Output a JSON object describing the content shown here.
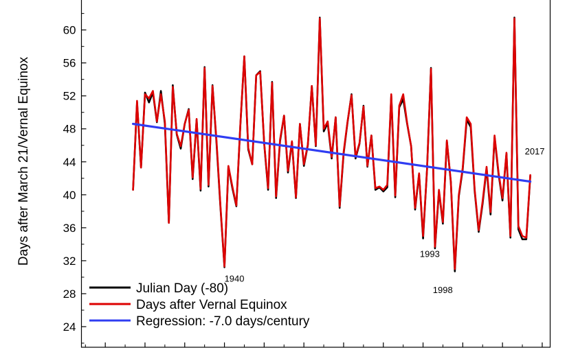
{
  "chart_data": {
    "type": "line",
    "title": "",
    "xlabel": "",
    "ylabel": "Days after March 21/Vernal Equinox",
    "ylim": [
      21.5,
      63.8
    ],
    "xlim": [
      1904,
      2022
    ],
    "yticks": [
      24,
      28,
      32,
      36,
      40,
      44,
      48,
      52,
      56,
      60
    ],
    "x": [
      1917,
      1918,
      1919,
      1920,
      1921,
      1922,
      1923,
      1924,
      1925,
      1926,
      1927,
      1928,
      1929,
      1930,
      1931,
      1932,
      1933,
      1934,
      1935,
      1936,
      1937,
      1938,
      1939,
      1940,
      1941,
      1942,
      1943,
      1944,
      1945,
      1946,
      1947,
      1948,
      1949,
      1950,
      1951,
      1952,
      1953,
      1954,
      1955,
      1956,
      1957,
      1958,
      1959,
      1960,
      1961,
      1962,
      1963,
      1964,
      1965,
      1966,
      1967,
      1968,
      1969,
      1970,
      1971,
      1972,
      1973,
      1974,
      1975,
      1976,
      1977,
      1978,
      1979,
      1980,
      1981,
      1982,
      1983,
      1984,
      1985,
      1986,
      1987,
      1988,
      1989,
      1990,
      1991,
      1992,
      1993,
      1994,
      1995,
      1996,
      1997,
      1998,
      1999,
      2000,
      2001,
      2002,
      2003,
      2004,
      2005,
      2006,
      2007,
      2008,
      2009,
      2010,
      2011,
      2012,
      2013,
      2014,
      2015,
      2016,
      2017
    ],
    "series": [
      {
        "name": "Julian Day (-80)",
        "color": "#000000",
        "values": [
          40.6,
          51.2,
          43.3,
          52.4,
          51.2,
          52.4,
          48.8,
          52.6,
          48.6,
          36.6,
          53.3,
          47.3,
          45.6,
          48.6,
          50.4,
          41.9,
          49.1,
          40.5,
          55.5,
          41.0,
          53.3,
          46.3,
          38.4,
          31.2,
          43.4,
          40.8,
          38.6,
          48.4,
          56.8,
          45.5,
          43.7,
          54.5,
          55.0,
          46.2,
          40.6,
          53.7,
          39.6,
          46.5,
          49.6,
          42.7,
          46.4,
          39.6,
          48.6,
          43.5,
          46.0,
          53.2,
          45.9,
          61.5,
          47.7,
          48.7,
          44.4,
          49.4,
          38.4,
          45.0,
          48.8,
          52.2,
          44.4,
          46.2,
          50.8,
          43.4,
          47.2,
          40.6,
          40.9,
          40.4,
          40.9,
          52.0,
          39.7,
          50.6,
          51.6,
          48.6,
          45.9,
          38.2,
          42.5,
          34.7,
          43.0,
          55.4,
          33.5,
          40.4,
          36.5,
          46.5,
          41.5,
          30.7,
          39.8,
          43.1,
          49.1,
          48.2,
          40.4,
          35.5,
          38.9,
          43.2,
          37.6,
          47.0,
          42.5,
          39.3,
          45.0,
          34.8,
          61.5,
          35.8,
          34.6,
          34.6,
          42.3
        ]
      },
      {
        "name": "Days after Vernal Equinox",
        "color": "#dd0000",
        "values": [
          40.6,
          51.4,
          43.3,
          52.2,
          51.7,
          52.6,
          48.9,
          52.2,
          48.9,
          36.6,
          53.1,
          47.4,
          45.9,
          48.6,
          50.3,
          42.1,
          49.2,
          40.7,
          55.4,
          41.2,
          53.2,
          46.6,
          38.6,
          31.3,
          43.5,
          41.0,
          38.7,
          48.5,
          56.8,
          45.7,
          43.7,
          54.5,
          54.9,
          46.3,
          40.8,
          53.6,
          39.8,
          46.7,
          49.6,
          42.9,
          46.5,
          39.7,
          48.6,
          43.7,
          46.1,
          53.2,
          46.0,
          61.4,
          48.0,
          48.9,
          44.6,
          49.4,
          38.6,
          45.2,
          48.9,
          52.1,
          44.6,
          46.3,
          50.7,
          43.5,
          47.2,
          40.8,
          41.0,
          40.6,
          41.2,
          52.2,
          39.9,
          50.8,
          52.2,
          48.7,
          45.9,
          38.4,
          42.6,
          35.0,
          43.0,
          55.3,
          33.7,
          40.6,
          36.7,
          46.6,
          41.6,
          31.0,
          40.0,
          43.3,
          49.4,
          48.6,
          40.6,
          35.7,
          39.2,
          43.4,
          37.9,
          47.2,
          42.7,
          39.6,
          45.1,
          35.0,
          61.4,
          36.2,
          35.0,
          34.8,
          42.4
        ]
      },
      {
        "name": "Regression: -7.0 days/century",
        "color": "#2f3df2",
        "type": "line",
        "x": [
          1917,
          2017
        ],
        "values": [
          48.6,
          41.6
        ]
      }
    ],
    "annotations": [
      {
        "text": "1940",
        "x": 1940,
        "y": 31.3
      },
      {
        "text": "1993",
        "x": 1993,
        "y": 33.7
      },
      {
        "text": "1998",
        "x": 1998,
        "y": 31.0
      },
      {
        "text": "2017",
        "x": 2017,
        "y": 42.4
      }
    ],
    "legend": {
      "placement": "bottom-left",
      "entries": [
        {
          "label": "Julian Day (-80)",
          "color": "#000000"
        },
        {
          "label": "Days after Vernal Equinox",
          "color": "#dd0000"
        },
        {
          "label": "Regression: -7.0 days/century",
          "color": "#2f3df2"
        }
      ]
    }
  }
}
